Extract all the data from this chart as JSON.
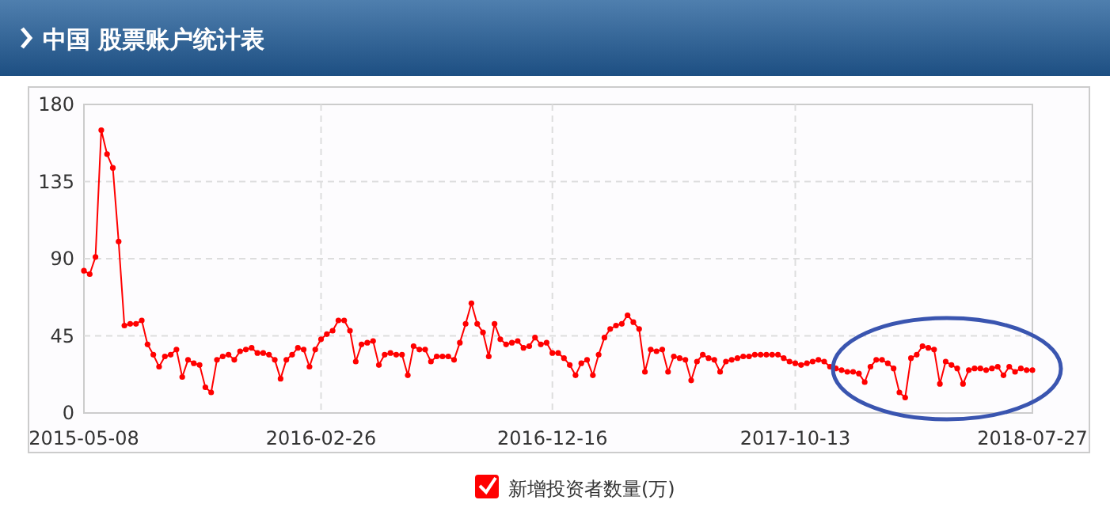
{
  "chart_data": {
    "type": "line",
    "title": "中国 股票账户统计表",
    "categories": [
      "2015-05-08",
      null,
      null,
      null,
      null,
      null,
      null,
      null,
      null,
      null,
      null,
      null,
      null,
      null,
      null,
      null,
      null,
      null,
      null,
      null,
      null,
      null,
      null,
      null,
      null,
      null,
      null,
      null,
      null,
      null,
      null,
      null,
      null,
      null,
      null,
      null,
      null,
      null,
      null,
      null,
      null,
      "2016-02-26",
      null,
      null,
      null,
      null,
      null,
      null,
      null,
      null,
      null,
      null,
      null,
      null,
      null,
      null,
      null,
      null,
      null,
      null,
      null,
      null,
      null,
      null,
      null,
      null,
      null,
      null,
      null,
      null,
      null,
      null,
      null,
      null,
      null,
      null,
      null,
      null,
      null,
      null,
      null,
      "2016-12-16",
      null,
      null,
      null,
      null,
      null,
      null,
      null,
      null,
      null,
      null,
      null,
      null,
      null,
      null,
      null,
      null,
      null,
      null,
      null,
      null,
      null,
      null,
      null,
      null,
      null,
      null,
      null,
      null,
      null,
      null,
      null,
      null,
      null,
      null,
      null,
      null,
      null,
      null,
      null,
      null,
      null,
      "2017-10-13",
      null,
      null,
      null,
      null,
      null,
      null,
      null,
      null,
      null,
      null,
      null,
      null,
      null,
      null,
      null,
      null,
      null,
      null,
      null,
      null,
      null,
      null,
      null,
      null,
      null,
      null,
      null,
      null,
      null,
      null,
      null,
      null,
      null,
      null,
      null,
      null,
      null,
      null,
      null,
      null,
      "2018-07-27"
    ],
    "series": [
      {
        "name": "新增投资者数量(万)",
        "color": "#ff0000",
        "values": [
          83,
          81,
          91,
          165,
          151,
          143,
          100,
          51,
          52,
          52,
          54,
          40,
          34,
          27,
          33,
          34,
          37,
          21,
          31,
          29,
          28,
          15,
          12,
          31,
          33,
          34,
          31,
          36,
          37,
          38,
          35,
          35,
          34,
          31,
          20,
          31,
          34,
          38,
          37,
          27,
          37,
          43,
          46,
          48,
          54,
          54,
          48,
          30,
          40,
          41,
          42,
          28,
          34,
          35,
          34,
          34,
          22,
          39,
          37,
          37,
          30,
          33,
          33,
          33,
          31,
          41,
          52,
          64,
          52,
          47,
          33,
          52,
          43,
          40,
          41,
          42,
          38,
          39,
          44,
          40,
          41,
          35,
          35,
          32,
          28,
          22,
          29,
          31,
          22,
          34,
          44,
          49,
          51,
          52,
          57,
          53,
          49,
          24,
          37,
          36,
          37,
          24,
          33,
          32,
          31,
          19,
          30,
          34,
          32,
          31,
          24,
          30,
          31,
          32,
          33,
          33,
          34,
          34,
          34,
          34,
          34,
          32,
          30,
          29,
          28,
          29,
          30,
          31,
          30,
          27,
          26,
          25,
          24,
          24,
          23,
          18,
          27,
          31,
          31,
          29,
          26,
          12,
          9,
          32,
          34,
          39,
          38,
          37,
          17,
          30,
          28,
          26,
          17,
          25,
          26,
          26,
          25,
          26,
          27,
          22,
          27,
          24,
          26,
          25,
          25
        ]
      }
    ],
    "ylim": [
      0,
      180
    ],
    "yticks": [
      0,
      45,
      90,
      135,
      180
    ],
    "grid": true,
    "legend": "bottom",
    "marker": "circle"
  }
}
